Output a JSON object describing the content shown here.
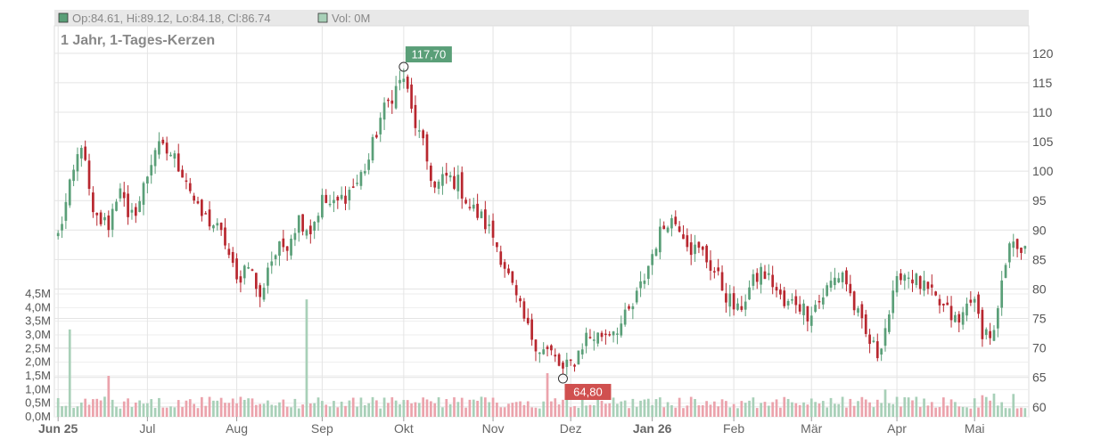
{
  "legend": {
    "ohlc": "Op:84.61, Hi:89.12, Lo:84.18, Cl:86.74",
    "vol": "Vol: 0M"
  },
  "colors": {
    "up": "#5a9f78",
    "down": "#b8272f",
    "vol_up": "#a8d0b8",
    "vol_down": "#eba3ac",
    "high_label": "#5a9f78",
    "low_label": "#d0504f",
    "grid": "#e4e4e4"
  },
  "chart_data": {
    "type": "candlestick",
    "title": "1 Jahr, 1-Tages-Kerzen",
    "price_axis": {
      "min": 58,
      "max": 123,
      "ticks": [
        60,
        65,
        70,
        75,
        80,
        85,
        90,
        95,
        100,
        105,
        110,
        115,
        120
      ],
      "tick_labels": [
        "60",
        "65",
        "70",
        "75",
        "80",
        "85",
        "90",
        "95",
        "100",
        "105",
        "110",
        "115",
        "120"
      ]
    },
    "volume_axis": {
      "min": 0,
      "max": 4.5,
      "ticks": [
        0,
        0.5,
        1,
        1.5,
        2,
        2.5,
        3,
        3.5,
        4,
        4.5
      ],
      "tick_labels": [
        "0,0M",
        "0,5M",
        "1,0M",
        "1,5M",
        "2,0M",
        "2,5M",
        "3,0M",
        "3,5M",
        "4,0M",
        "4,5M"
      ]
    },
    "x_months": [
      {
        "label": "Jun 25",
        "index": 0,
        "bold": true
      },
      {
        "label": "Jul",
        "index": 23,
        "bold": false
      },
      {
        "label": "Aug",
        "index": 46,
        "bold": false
      },
      {
        "label": "Sep",
        "index": 68,
        "bold": false
      },
      {
        "label": "Okt",
        "index": 89,
        "bold": false
      },
      {
        "label": "Nov",
        "index": 112,
        "bold": false
      },
      {
        "label": "Dez",
        "index": 132,
        "bold": false
      },
      {
        "label": "Jan 26",
        "index": 153,
        "bold": true
      },
      {
        "label": "Feb",
        "index": 174,
        "bold": false
      },
      {
        "label": "Mär",
        "index": 194,
        "bold": false
      },
      {
        "label": "Apr",
        "index": 216,
        "bold": false
      },
      {
        "label": "Mai",
        "index": 236,
        "bold": false
      }
    ],
    "keypoints": [
      [
        0,
        89
      ],
      [
        3,
        97
      ],
      [
        6,
        105
      ],
      [
        9,
        92
      ],
      [
        13,
        91
      ],
      [
        16,
        98
      ],
      [
        18,
        91
      ],
      [
        21,
        95
      ],
      [
        25,
        104
      ],
      [
        29,
        103
      ],
      [
        33,
        99
      ],
      [
        36,
        93
      ],
      [
        40,
        91
      ],
      [
        43,
        88
      ],
      [
        46,
        81
      ],
      [
        49,
        85
      ],
      [
        52,
        78
      ],
      [
        54,
        84
      ],
      [
        56,
        86
      ],
      [
        59,
        88
      ],
      [
        62,
        92
      ],
      [
        65,
        90
      ],
      [
        68,
        95
      ],
      [
        71,
        94
      ],
      [
        74,
        96
      ],
      [
        77,
        98
      ],
      [
        80,
        102
      ],
      [
        83,
        109
      ],
      [
        86,
        113
      ],
      [
        89,
        116
      ],
      [
        91,
        110
      ],
      [
        94,
        104
      ],
      [
        97,
        97
      ],
      [
        100,
        99
      ],
      [
        103,
        98
      ],
      [
        106,
        94
      ],
      [
        109,
        92
      ],
      [
        112,
        89
      ],
      [
        115,
        84
      ],
      [
        118,
        78
      ],
      [
        121,
        73
      ],
      [
        124,
        70
      ],
      [
        127,
        69
      ],
      [
        130,
        66
      ],
      [
        133,
        68
      ],
      [
        136,
        72
      ],
      [
        139,
        72
      ],
      [
        142,
        73
      ],
      [
        145,
        74
      ],
      [
        148,
        77
      ],
      [
        151,
        82
      ],
      [
        154,
        88
      ],
      [
        157,
        92
      ],
      [
        160,
        91
      ],
      [
        163,
        87
      ],
      [
        166,
        86
      ],
      [
        169,
        83
      ],
      [
        172,
        79
      ],
      [
        175,
        76
      ],
      [
        178,
        80
      ],
      [
        181,
        83
      ],
      [
        184,
        81
      ],
      [
        187,
        77
      ],
      [
        190,
        78
      ],
      [
        193,
        76
      ],
      [
        196,
        78
      ],
      [
        199,
        81
      ],
      [
        202,
        83
      ],
      [
        205,
        77
      ],
      [
        208,
        72
      ],
      [
        211,
        69
      ],
      [
        214,
        76
      ],
      [
        217,
        83
      ],
      [
        220,
        82
      ],
      [
        223,
        80
      ],
      [
        226,
        78
      ],
      [
        229,
        76
      ],
      [
        232,
        74
      ],
      [
        235,
        79
      ],
      [
        238,
        73
      ],
      [
        241,
        72
      ],
      [
        244,
        84
      ],
      [
        246,
        89
      ],
      [
        249,
        86
      ]
    ],
    "marks": [
      {
        "type": "high",
        "index": 89,
        "value": 117.7,
        "label": "117,70"
      },
      {
        "type": "low",
        "index": 130,
        "value": 64.8,
        "label": "64,80"
      }
    ],
    "volume_spikes": [
      [
        3,
        3.2
      ],
      [
        64,
        4.3
      ],
      [
        13,
        1.5
      ],
      [
        126,
        1.6
      ],
      [
        213,
        1.0
      ]
    ],
    "n_candles": 250
  }
}
